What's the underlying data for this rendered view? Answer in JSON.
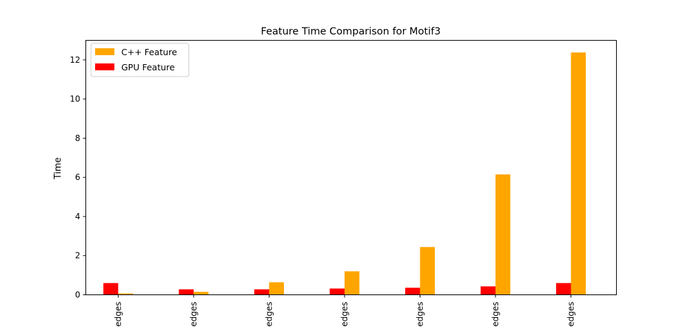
{
  "chart_data": {
    "type": "bar",
    "title": "Feature Time Comparison for Motif3",
    "xlabel": "",
    "ylabel": "Time",
    "ylim": [
      0,
      13
    ],
    "yticks": [
      0,
      2,
      4,
      6,
      8,
      10,
      12
    ],
    "categories": [
      "edges",
      "edges",
      "edges",
      "edges",
      "edges",
      "edges",
      "edges"
    ],
    "series": [
      {
        "name": "GPU Feature",
        "color": "#ff0000",
        "values": [
          0.6,
          0.28,
          0.28,
          0.32,
          0.36,
          0.43,
          0.6
        ]
      },
      {
        "name": "C++ Feature",
        "color": "#ffa500",
        "values": [
          0.07,
          0.15,
          0.64,
          1.2,
          2.44,
          6.15,
          12.38
        ]
      }
    ],
    "legend": {
      "position": "top-left",
      "entries": [
        {
          "label": "C++ Feature",
          "color": "#ffa500"
        },
        {
          "label": "GPU Feature",
          "color": "#ff0000"
        }
      ]
    },
    "grid": false
  }
}
